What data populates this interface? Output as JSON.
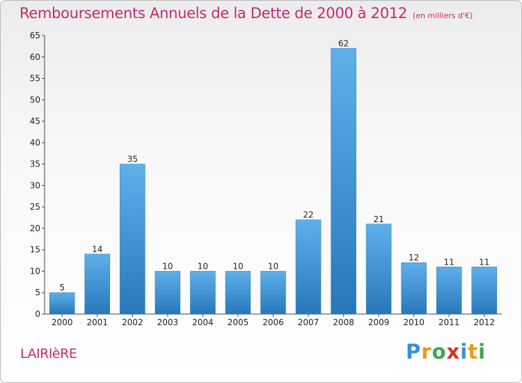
{
  "title": "Remboursements Annuels de la Dette de 2000 à 2012",
  "subtitle": "(en milliers d'€)",
  "commune": "LAIRIèRE",
  "logo": {
    "letters": [
      {
        "ch": "P",
        "color": "#3a8fd4"
      },
      {
        "ch": "r",
        "color": "#e89a1a"
      },
      {
        "ch": "o",
        "color": "#3aa84a"
      },
      {
        "ch": "x",
        "color": "#d8332a"
      },
      {
        "ch": "i",
        "color": "#3a8fd4"
      },
      {
        "ch": "t",
        "color": "#e89a1a"
      },
      {
        "ch": "i",
        "color": "#3aa84a"
      }
    ]
  },
  "colors": {
    "bar_light": "#5eb0ea",
    "bar_dark": "#2878b8",
    "title": "#c8286e"
  },
  "chart_data": {
    "type": "bar",
    "categories": [
      "2000",
      "2001",
      "2002",
      "2003",
      "2004",
      "2005",
      "2006",
      "2007",
      "2008",
      "2009",
      "2010",
      "2011",
      "2012"
    ],
    "values": [
      5,
      14,
      35,
      10,
      10,
      10,
      10,
      22,
      62,
      21,
      12,
      11,
      11
    ],
    "ylim": [
      0,
      65
    ],
    "yticks": [
      0,
      5,
      10,
      15,
      20,
      25,
      30,
      35,
      40,
      45,
      50,
      55,
      60,
      65
    ],
    "grid": false,
    "xlabel": "",
    "ylabel": ""
  }
}
